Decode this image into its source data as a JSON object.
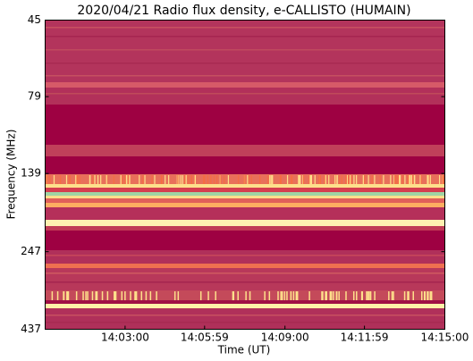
{
  "chart_data": {
    "type": "spectrogram",
    "title": "2020/04/21  Radio flux density, e-CALLISTO (HUMAIN)",
    "xlabel": "Time (UT)",
    "ylabel": "Frequency (MHz)",
    "xlim": [
      "14:00:00",
      "14:15:00"
    ],
    "xticks": [
      "14:03:00",
      "14:05:59",
      "14:09:00",
      "14:11:59",
      "14:15:00"
    ],
    "ylim": [
      45,
      437
    ],
    "yticks": [
      45,
      79,
      139,
      247,
      437
    ],
    "yscale": "log",
    "y_reversed": true
  }
}
